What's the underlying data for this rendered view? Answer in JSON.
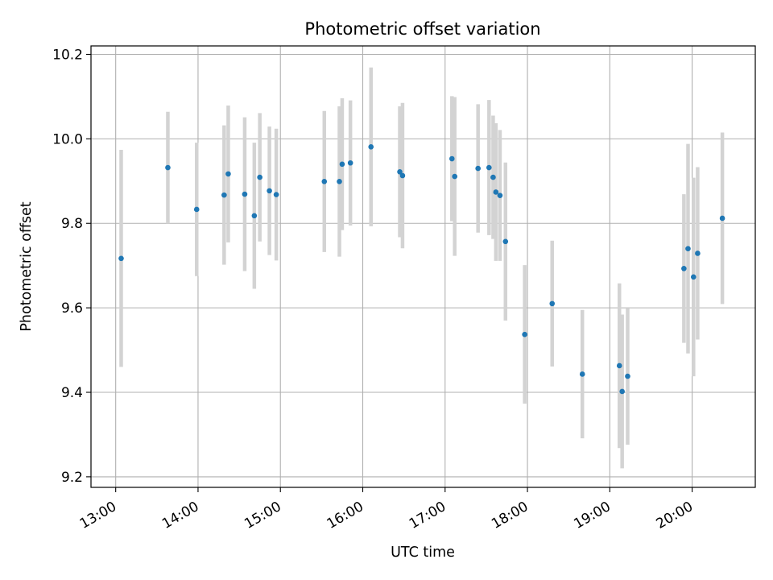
{
  "chart_data": {
    "type": "scatter",
    "title": "Photometric offset variation",
    "xlabel": "UTC time",
    "ylabel": "Photometric offset",
    "x_ticks": [
      "13:00",
      "14:00",
      "15:00",
      "16:00",
      "17:00",
      "18:00",
      "19:00",
      "20:00"
    ],
    "y_ticks": [
      "9.2",
      "9.4",
      "9.6",
      "9.8",
      "10.0",
      "10.2"
    ],
    "xlim": [
      "12:42",
      "20:46"
    ],
    "ylim": [
      9.175,
      10.22
    ],
    "grid": true,
    "point_color": "#1f77b4",
    "errorbar_color": "#d3d3d3",
    "points": [
      {
        "x": "13:04",
        "y": 9.717,
        "err": 0.257
      },
      {
        "x": "13:38",
        "y": 9.932,
        "err": 0.132
      },
      {
        "x": "13:59",
        "y": 9.833,
        "err": 0.158
      },
      {
        "x": "14:19",
        "y": 9.867,
        "err": 0.165
      },
      {
        "x": "14:22",
        "y": 9.917,
        "err": 0.162
      },
      {
        "x": "14:34",
        "y": 9.869,
        "err": 0.182
      },
      {
        "x": "14:41",
        "y": 9.818,
        "err": 0.173
      },
      {
        "x": "14:45",
        "y": 9.909,
        "err": 0.152
      },
      {
        "x": "14:52",
        "y": 9.877,
        "err": 0.152
      },
      {
        "x": "14:57",
        "y": 9.868,
        "err": 0.156
      },
      {
        "x": "15:32",
        "y": 9.899,
        "err": 0.167
      },
      {
        "x": "15:43",
        "y": 9.899,
        "err": 0.178
      },
      {
        "x": "15:45",
        "y": 9.94,
        "err": 0.156
      },
      {
        "x": "15:51",
        "y": 9.943,
        "err": 0.148
      },
      {
        "x": "16:06",
        "y": 9.981,
        "err": 0.188
      },
      {
        "x": "16:27",
        "y": 9.922,
        "err": 0.155
      },
      {
        "x": "16:29",
        "y": 9.913,
        "err": 0.172
      },
      {
        "x": "17:05",
        "y": 9.953,
        "err": 0.148
      },
      {
        "x": "17:07",
        "y": 9.911,
        "err": 0.188
      },
      {
        "x": "17:24",
        "y": 9.93,
        "err": 0.152
      },
      {
        "x": "17:32",
        "y": 9.932,
        "err": 0.16
      },
      {
        "x": "17:35",
        "y": 9.909,
        "err": 0.146
      },
      {
        "x": "17:37",
        "y": 9.874,
        "err": 0.163
      },
      {
        "x": "17:40",
        "y": 9.866,
        "err": 0.155
      },
      {
        "x": "17:44",
        "y": 9.757,
        "err": 0.187
      },
      {
        "x": "17:58",
        "y": 9.537,
        "err": 0.164
      },
      {
        "x": "18:18",
        "y": 9.61,
        "err": 0.149
      },
      {
        "x": "18:40",
        "y": 9.443,
        "err": 0.152
      },
      {
        "x": "19:07",
        "y": 9.463,
        "err": 0.195
      },
      {
        "x": "19:09",
        "y": 9.402,
        "err": 0.182
      },
      {
        "x": "19:13",
        "y": 9.438,
        "err": 0.162
      },
      {
        "x": "19:54",
        "y": 9.693,
        "err": 0.176
      },
      {
        "x": "19:57",
        "y": 9.74,
        "err": 0.248
      },
      {
        "x": "20:01",
        "y": 9.673,
        "err": 0.235
      },
      {
        "x": "20:04",
        "y": 9.729,
        "err": 0.204
      },
      {
        "x": "20:22",
        "y": 9.812,
        "err": 0.203
      }
    ]
  }
}
